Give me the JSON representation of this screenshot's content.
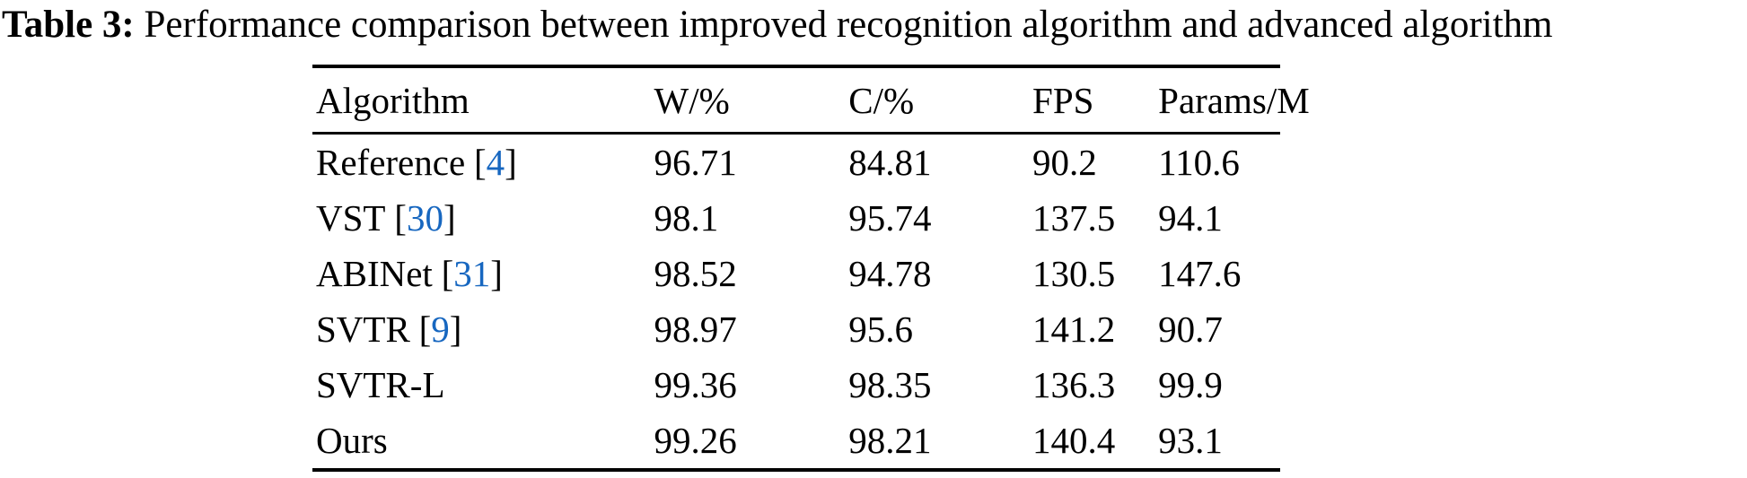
{
  "caption": {
    "label": "Table 3:",
    "text": " Performance comparison between improved recognition algorithm and advanced algorithm"
  },
  "colors": {
    "citation_blue": "#1767c0",
    "text": "#000000",
    "background": "#ffffff",
    "rule": "#000000"
  },
  "table": {
    "citation_open": "[",
    "citation_close": "]",
    "columns": [
      "Algorithm",
      "W/%",
      "C/%",
      "FPS",
      "Params/M"
    ],
    "rows": [
      {
        "algorithm": "Reference",
        "citation": "4",
        "w": "96.71",
        "c": "84.81",
        "fps": "90.2",
        "params": "110.6"
      },
      {
        "algorithm": "VST",
        "citation": "30",
        "w": "98.1",
        "c": "95.74",
        "fps": "137.5",
        "params": "94.1"
      },
      {
        "algorithm": "ABINet",
        "citation": "31",
        "w": "98.52",
        "c": "94.78",
        "fps": "130.5",
        "params": "147.6"
      },
      {
        "algorithm": "SVTR",
        "citation": "9",
        "w": "98.97",
        "c": "95.6",
        "fps": "141.2",
        "params": "90.7"
      },
      {
        "algorithm": "SVTR-L",
        "citation": null,
        "w": "99.36",
        "c": "98.35",
        "fps": "136.3",
        "params": "99.9"
      },
      {
        "algorithm": "Ours",
        "citation": null,
        "w": "99.26",
        "c": "98.21",
        "fps": "140.4",
        "params": "93.1"
      }
    ]
  }
}
